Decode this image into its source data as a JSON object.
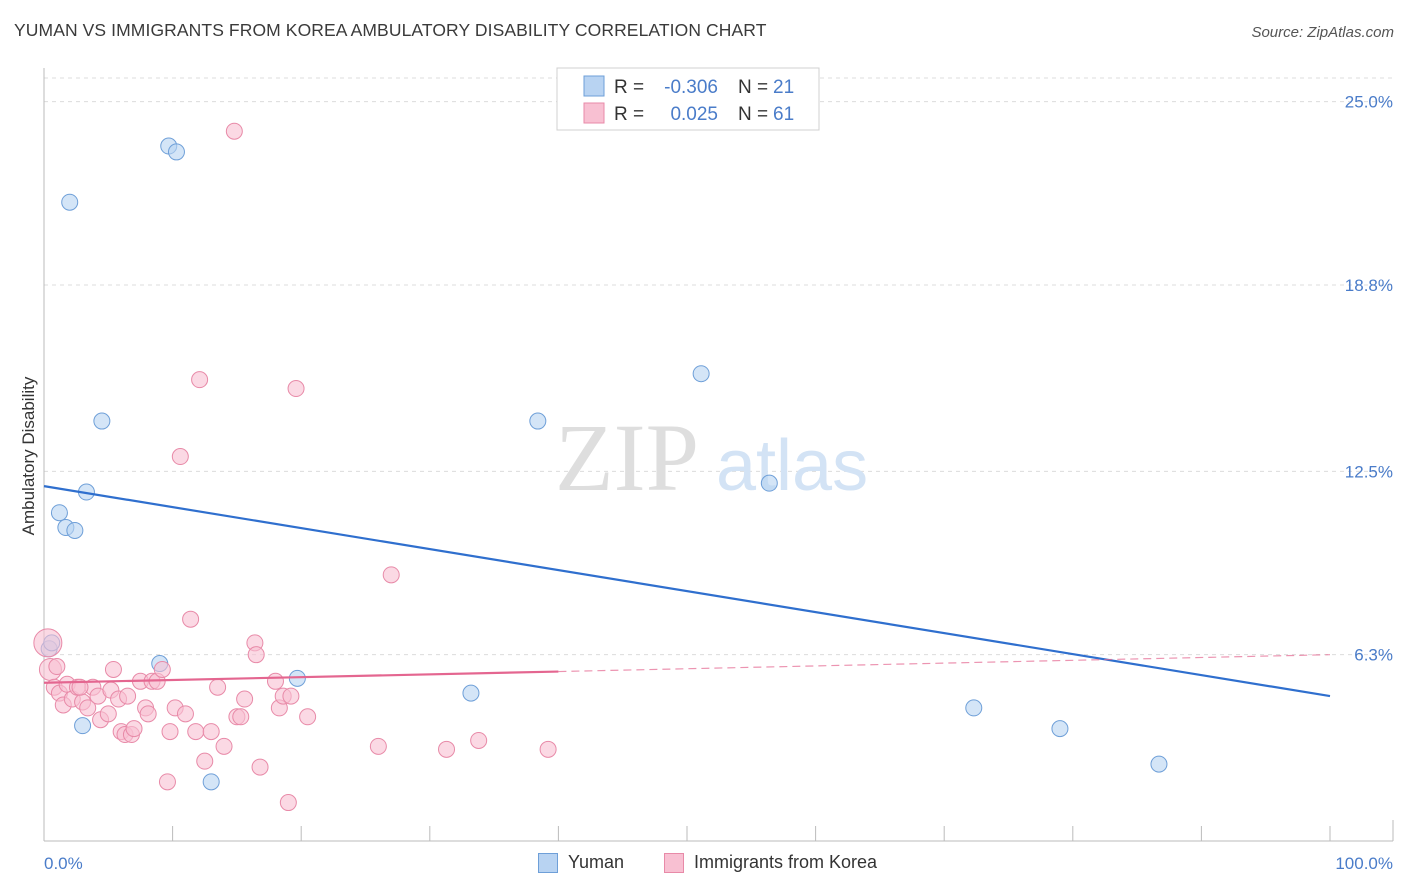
{
  "title": "YUMAN VS IMMIGRANTS FROM KOREA AMBULATORY DISABILITY CORRELATION CHART",
  "source": "Source: ZipAtlas.com",
  "watermark": {
    "zip": "ZIP",
    "atlas": "atlas"
  },
  "colors": {
    "blue_fill": "#b8d3f2",
    "blue_stroke": "#6e9fd8",
    "blue_line": "#2f6fce",
    "pink_fill": "#f8c0d2",
    "pink_stroke": "#e88aa8",
    "pink_line": "#e46690",
    "tick_label": "#4a7cc9",
    "grid": "#dcdcdc"
  },
  "legend_stats": [
    {
      "r_label": "R =",
      "r_value": "-0.306",
      "n_label": "N =",
      "n_value": "21",
      "series": "blue"
    },
    {
      "r_label": "R =",
      "r_value": "0.025",
      "n_label": "N =",
      "n_value": "61",
      "series": "pink"
    }
  ],
  "chart_data": {
    "type": "scatter",
    "title": "YUMAN VS IMMIGRANTS FROM KOREA AMBULATORY DISABILITY CORRELATION CHART",
    "xlabel": "",
    "ylabel": "Ambulatory Disability",
    "xlim": [
      0,
      100
    ],
    "ylim": [
      0,
      25.8
    ],
    "x_tick_labels": [
      "0.0%",
      "100.0%"
    ],
    "y_ticks": [
      6.3,
      12.5,
      18.8,
      25.0
    ],
    "y_tick_labels": [
      "6.3%",
      "12.5%",
      "18.8%",
      "25.0%"
    ],
    "grid": true,
    "legend_position": "top-center",
    "series": [
      {
        "name": "Yuman",
        "color": "blue",
        "points": [
          [
            0.4,
            6.5
          ],
          [
            0.6,
            6.7
          ],
          [
            2.0,
            21.6
          ],
          [
            4.5,
            14.2
          ],
          [
            3.3,
            11.8
          ],
          [
            1.2,
            11.1
          ],
          [
            1.7,
            10.6
          ],
          [
            2.4,
            10.5
          ],
          [
            3.0,
            3.9
          ],
          [
            9.7,
            23.5
          ],
          [
            10.3,
            23.3
          ],
          [
            9.0,
            6.0
          ],
          [
            13.0,
            2.0
          ],
          [
            19.7,
            5.5
          ],
          [
            33.2,
            5.0
          ],
          [
            38.4,
            14.2
          ],
          [
            51.1,
            15.8
          ],
          [
            56.4,
            12.1
          ],
          [
            72.3,
            4.5
          ],
          [
            79.0,
            3.8
          ],
          [
            86.7,
            2.6
          ]
        ],
        "trend": {
          "x": [
            0,
            100
          ],
          "y": [
            12.0,
            4.9
          ],
          "dashed_from": null
        }
      },
      {
        "name": "Immigrants from Korea",
        "color": "pink",
        "points": [
          [
            0.3,
            6.7
          ],
          [
            0.5,
            5.8
          ],
          [
            0.8,
            5.2
          ],
          [
            1.2,
            5.0
          ],
          [
            1.5,
            4.6
          ],
          [
            1.8,
            5.3
          ],
          [
            2.2,
            4.8
          ],
          [
            2.6,
            5.2
          ],
          [
            3.0,
            4.7
          ],
          [
            3.4,
            4.5
          ],
          [
            3.8,
            5.2
          ],
          [
            4.2,
            4.9
          ],
          [
            4.4,
            4.1
          ],
          [
            5.0,
            4.3
          ],
          [
            5.2,
            5.1
          ],
          [
            5.4,
            5.8
          ],
          [
            5.8,
            4.8
          ],
          [
            6.0,
            3.7
          ],
          [
            6.3,
            3.6
          ],
          [
            6.8,
            3.6
          ],
          [
            7.0,
            3.8
          ],
          [
            7.5,
            5.4
          ],
          [
            7.9,
            4.5
          ],
          [
            8.1,
            4.3
          ],
          [
            8.4,
            5.4
          ],
          [
            8.8,
            5.4
          ],
          [
            9.2,
            5.8
          ],
          [
            9.6,
            2.0
          ],
          [
            9.8,
            3.7
          ],
          [
            10.2,
            4.5
          ],
          [
            10.6,
            13.0
          ],
          [
            11.0,
            4.3
          ],
          [
            11.4,
            7.5
          ],
          [
            11.8,
            3.7
          ],
          [
            12.1,
            15.6
          ],
          [
            12.5,
            2.7
          ],
          [
            13.0,
            3.7
          ],
          [
            13.5,
            5.2
          ],
          [
            14.0,
            3.2
          ],
          [
            14.8,
            24.0
          ],
          [
            15.0,
            4.2
          ],
          [
            15.3,
            4.2
          ],
          [
            15.6,
            4.8
          ],
          [
            16.4,
            6.7
          ],
          [
            16.5,
            6.3
          ],
          [
            16.8,
            2.5
          ],
          [
            18.0,
            5.4
          ],
          [
            18.3,
            4.5
          ],
          [
            18.6,
            4.9
          ],
          [
            19.0,
            1.3
          ],
          [
            19.2,
            4.9
          ],
          [
            19.6,
            15.3
          ],
          [
            20.5,
            4.2
          ],
          [
            26.0,
            3.2
          ],
          [
            27.0,
            9.0
          ],
          [
            31.3,
            3.1
          ],
          [
            33.8,
            3.4
          ],
          [
            39.2,
            3.1
          ],
          [
            1.0,
            5.9
          ],
          [
            2.8,
            5.2
          ],
          [
            6.5,
            4.9
          ]
        ],
        "trend": {
          "x": [
            0,
            100
          ],
          "y": [
            5.35,
            6.3
          ],
          "dashed_from": 40
        }
      }
    ]
  },
  "legend_bottom": [
    {
      "label": "Yuman",
      "series": "blue"
    },
    {
      "label": "Immigrants from Korea",
      "series": "pink"
    }
  ]
}
